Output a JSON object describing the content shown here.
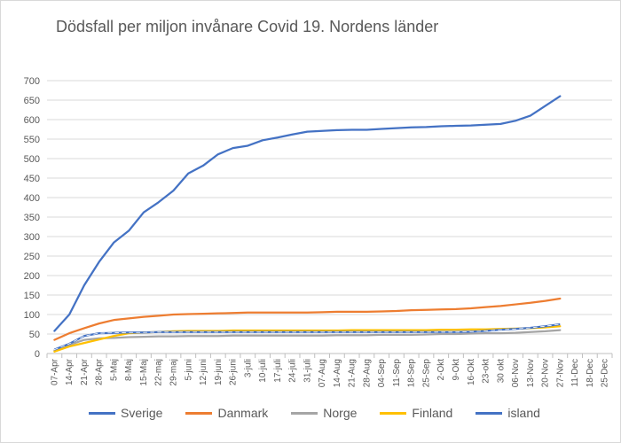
{
  "chart_data": {
    "type": "line",
    "title": "Dödsfall per miljon invånare Covid 19. Nordens länder",
    "xlabel": "",
    "ylabel": "",
    "ylim": [
      0,
      700
    ],
    "yticks": [
      0,
      50,
      100,
      150,
      200,
      250,
      300,
      350,
      400,
      450,
      500,
      550,
      600,
      650,
      700
    ],
    "grid": "horizontal",
    "legend_position": "bottom",
    "categories": [
      "07-Apr",
      "14-Apr",
      "21-Apr",
      "28-Apr",
      "5-Maj",
      "8-Maj",
      "15-Maj",
      "22-maj",
      "29-maj",
      "5-juni",
      "12-juni",
      "19-juni",
      "26-juni",
      "3-juli",
      "10-juli",
      "17-juli",
      "24-juli",
      "31-juli",
      "07-Aug",
      "14-Aug",
      "21-Aug",
      "28-Aug",
      "04-Sep",
      "11-Sep",
      "18-Sep",
      "25-Sep",
      "2-Okt",
      "9-Okt",
      "16-Okt",
      "23-okt",
      "30 okt",
      "06-Nov",
      "13-Nov",
      "20-Nov",
      "27-Nov",
      "11-Dec",
      "18-Dec",
      "25-Dec"
    ],
    "series": [
      {
        "name": "Sverige",
        "color": "#4472c4",
        "values": [
          58,
          100,
          175,
          235,
          285,
          315,
          362,
          388,
          418,
          462,
          482,
          511,
          527,
          533,
          547,
          554,
          562,
          569,
          571,
          573,
          574,
          574,
          576,
          578,
          580,
          581,
          583,
          584,
          585,
          587,
          589,
          597,
          610,
          635,
          660,
          null,
          null,
          null
        ]
      },
      {
        "name": "Danmark",
        "color": "#ed7d31",
        "values": [
          35,
          52,
          65,
          77,
          86,
          90,
          94,
          97,
          100,
          101,
          102,
          103,
          104,
          105,
          105,
          105,
          105,
          105,
          106,
          107,
          107,
          107,
          108,
          109,
          111,
          112,
          113,
          114,
          116,
          119,
          122,
          126,
          130,
          135,
          141,
          null,
          null,
          null
        ]
      },
      {
        "name": "Norge",
        "color": "#a5a5a5",
        "values": [
          8,
          22,
          35,
          39,
          40,
          42,
          43,
          44,
          44,
          45,
          45,
          45,
          46,
          46,
          46,
          46,
          46,
          46,
          46,
          47,
          47,
          47,
          48,
          48,
          48,
          49,
          50,
          50,
          51,
          52,
          52,
          53,
          55,
          57,
          60,
          null,
          null,
          null
        ]
      },
      {
        "name": "Finland",
        "color": "#ffc000",
        "values": [
          5,
          18,
          27,
          36,
          45,
          52,
          54,
          55,
          57,
          58,
          58,
          58,
          59,
          59,
          59,
          59,
          59,
          59,
          59,
          59,
          60,
          60,
          60,
          60,
          60,
          60,
          61,
          61,
          62,
          62,
          63,
          64,
          65,
          67,
          70,
          null,
          null,
          null
        ]
      },
      {
        "name": "island",
        "color": "#4472c4",
        "values": [
          10,
          25,
          45,
          52,
          53,
          54,
          54,
          55,
          55,
          55,
          55,
          55,
          55,
          55,
          55,
          55,
          55,
          55,
          55,
          55,
          55,
          55,
          55,
          55,
          55,
          55,
          55,
          55,
          56,
          58,
          61,
          63,
          66,
          70,
          75,
          null,
          null,
          null
        ]
      }
    ]
  }
}
